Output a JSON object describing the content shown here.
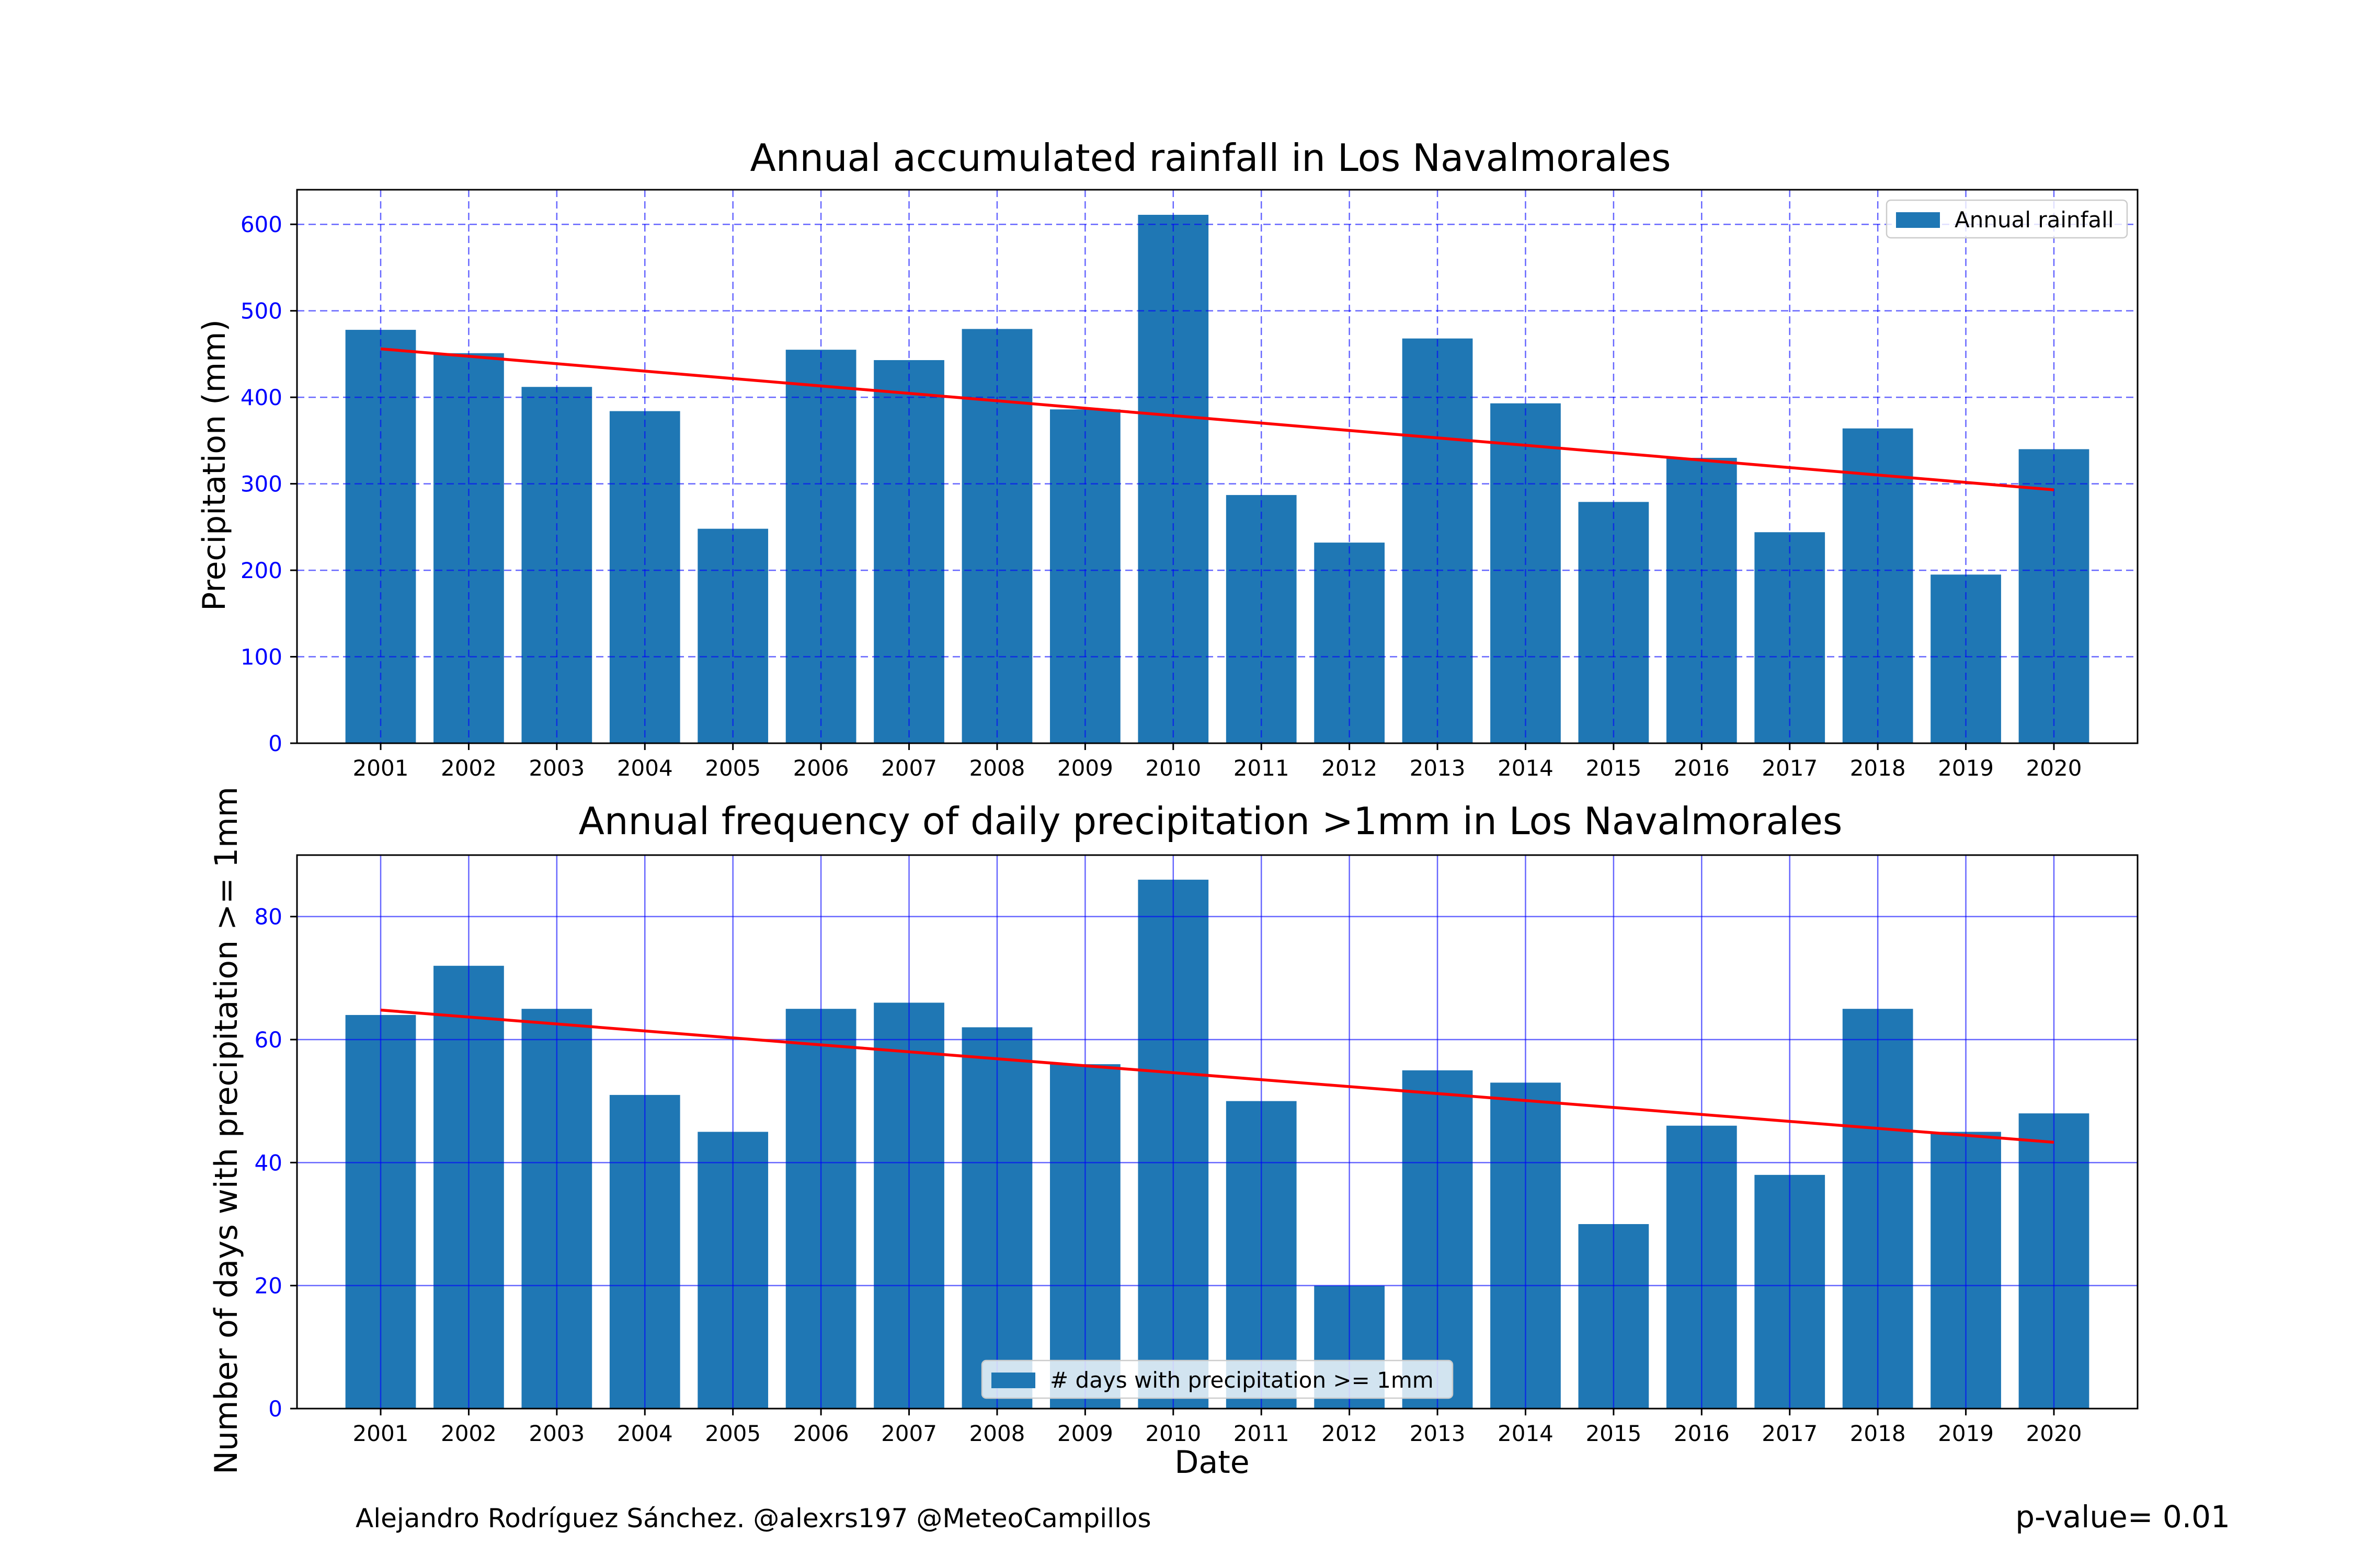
{
  "chart_data": [
    {
      "type": "bar",
      "title": "Annual accumulated rainfall in Los Navalmorales",
      "xlabel": "",
      "ylabel": "Precipitation (mm)",
      "categories": [
        "2001",
        "2002",
        "2003",
        "2004",
        "2005",
        "2006",
        "2007",
        "2008",
        "2009",
        "2010",
        "2011",
        "2012",
        "2013",
        "2014",
        "2015",
        "2016",
        "2017",
        "2018",
        "2019",
        "2020"
      ],
      "series": [
        {
          "name": "Annual rainfall",
          "values": [
            478,
            451,
            412,
            384,
            248,
            455,
            443,
            479,
            386,
            611,
            287,
            232,
            468,
            393,
            279,
            330,
            244,
            364,
            195,
            340
          ]
        }
      ],
      "trend": {
        "start": 456,
        "end": 293,
        "color": "#ff0000"
      },
      "ylim": [
        0,
        640
      ],
      "yticks": [
        0,
        100,
        200,
        300,
        400,
        500,
        600
      ],
      "grid": "dashed",
      "legend": "top-right",
      "bar_color": "#1f77b4",
      "grid_color": "#0000ff",
      "tick_label_color": "#0000ff"
    },
    {
      "type": "bar",
      "title": "Annual frequency of daily precipitation >1mm in Los Navalmorales",
      "xlabel": "Date",
      "ylabel": "Number of days with precipitation >= 1mm",
      "categories": [
        "2001",
        "2002",
        "2003",
        "2004",
        "2005",
        "2006",
        "2007",
        "2008",
        "2009",
        "2010",
        "2011",
        "2012",
        "2013",
        "2014",
        "2015",
        "2016",
        "2017",
        "2018",
        "2019",
        "2020"
      ],
      "series": [
        {
          "name": "# days with precipitation >= 1mm",
          "values": [
            64,
            72,
            65,
            51,
            45,
            65,
            66,
            62,
            56,
            86,
            50,
            20,
            55,
            53,
            30,
            46,
            38,
            65,
            45,
            48
          ]
        }
      ],
      "trend": {
        "start": 64.8,
        "end": 43.3,
        "color": "#ff0000"
      },
      "ylim": [
        0,
        90
      ],
      "yticks": [
        0,
        20,
        40,
        60,
        80
      ],
      "grid": "solid",
      "legend": "bottom-center",
      "bar_color": "#1f77b4",
      "grid_color": "#0000ff",
      "tick_label_color": "#0000ff"
    }
  ],
  "footer": {
    "credit": "Alejandro Rodríguez Sánchez. @alexrs197 @MeteoCampillos",
    "pvalue": "p-value= 0.01"
  }
}
